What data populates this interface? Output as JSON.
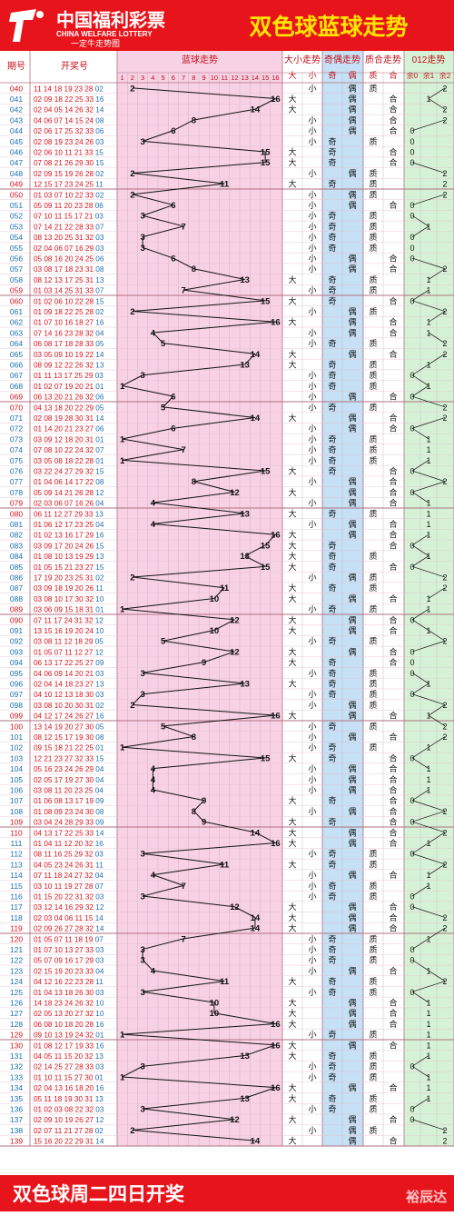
{
  "header": {
    "logo_cn": "中国福利彩票",
    "logo_en": "CHINA WELFARE LOTTERY",
    "logo_slogan": "一定牛走势图",
    "title": "双色球蓝球走势"
  },
  "columns": {
    "period": "期号",
    "numbers": "开奖号",
    "blue_trend": "蓝球走势",
    "size_trend": "大小走势",
    "parity_trend": "奇偶走势",
    "prime_trend": "质合走势",
    "mod3_trend": "012走势",
    "size_big": "大",
    "size_small": "小",
    "parity_odd": "奇",
    "parity_even": "偶",
    "prime_prime": "质",
    "prime_comp": "合",
    "mod_0": "余0",
    "mod_1": "余1",
    "mod_2": "余2"
  },
  "footer": {
    "text": "双色球周二四日开奖",
    "watermark": "裕辰达"
  },
  "colors": {
    "red": "#e8141b",
    "yellow": "#ffe600",
    "pink": "#f7d2e4",
    "blue": "#c6e0f5",
    "green": "#d6f2d6",
    "period_red": "#d8131b",
    "period_blue": "#1a6fb4"
  },
  "chart_data": {
    "type": "table",
    "blue_ball_range": [
      1,
      16
    ],
    "columns": [
      "1",
      "2",
      "3",
      "4",
      "5",
      "6",
      "7",
      "8",
      "9",
      "10",
      "11",
      "12",
      "13",
      "14",
      "15",
      "16"
    ],
    "rows": [
      {
        "period": "040",
        "reds": "11 14 18 19 23 28",
        "blue": 2
      },
      {
        "period": "041",
        "reds": "02 09 18 22 25 33",
        "blue": 16
      },
      {
        "period": "042",
        "reds": "02 04 05 14 26 32",
        "blue": 14
      },
      {
        "period": "043",
        "reds": "04 06 07 14 15 24",
        "blue": 8
      },
      {
        "period": "044",
        "reds": "02 06 17 25 32 33",
        "blue": 6
      },
      {
        "period": "045",
        "reds": "02 08 19 23 24 26",
        "blue": 3
      },
      {
        "period": "046",
        "reds": "02 06 10 11 21 33",
        "blue": 15
      },
      {
        "period": "047",
        "reds": "07 08 21 26 29 30",
        "blue": 15
      },
      {
        "period": "048",
        "reds": "02 09 15 19 26 28",
        "blue": 2
      },
      {
        "period": "049",
        "reds": "12 15 17 23 24 25",
        "blue": 11
      },
      {
        "period": "050",
        "reds": "01 03 07 10 22 33",
        "blue": 2
      },
      {
        "period": "051",
        "reds": "05 09 11 20 23 28",
        "blue": 6
      },
      {
        "period": "052",
        "reds": "07 10 11 15 17 21",
        "blue": 3
      },
      {
        "period": "053",
        "reds": "07 14 21 22 28 33",
        "blue": 7
      },
      {
        "period": "054",
        "reds": "08 13 20 25 31 32",
        "blue": 3
      },
      {
        "period": "055",
        "reds": "02 04 06 07 16 29",
        "blue": 3
      },
      {
        "period": "056",
        "reds": "05 08 16 20 24 25",
        "blue": 6
      },
      {
        "period": "057",
        "reds": "03 08 17 18 23 31",
        "blue": 8
      },
      {
        "period": "058",
        "reds": "08 12 13 17 25 31",
        "blue": 13
      },
      {
        "period": "059",
        "reds": "01 03 14 25 31 33",
        "blue": 7
      },
      {
        "period": "060",
        "reds": "01 02 06 10 22 28",
        "blue": 15
      },
      {
        "period": "061",
        "reds": "01 09 18 22 25 28",
        "blue": 2
      },
      {
        "period": "062",
        "reds": "01 07 10 16 18 27",
        "blue": 16
      },
      {
        "period": "063",
        "reds": "07 14 16 23 28 32",
        "blue": 4
      },
      {
        "period": "064",
        "reds": "06 08 17 18 28 33",
        "blue": 5
      },
      {
        "period": "065",
        "reds": "03 05 09 10 19 22",
        "blue": 14
      },
      {
        "period": "066",
        "reds": "08 09 12 22 26 32",
        "blue": 13
      },
      {
        "period": "067",
        "reds": "01 11 13 17 25 29",
        "blue": 3
      },
      {
        "period": "068",
        "reds": "01 02 07 19 20 21",
        "blue": 1
      },
      {
        "period": "069",
        "reds": "06 13 20 21 26 32",
        "blue": 6
      },
      {
        "period": "070",
        "reds": "04 13 18 20 22 29",
        "blue": 5
      },
      {
        "period": "071",
        "reds": "02 08 19 28 30 31",
        "blue": 14
      },
      {
        "period": "072",
        "reds": "01 14 20 21 23 27",
        "blue": 6
      },
      {
        "period": "073",
        "reds": "03 09 12 18 20 31",
        "blue": 1
      },
      {
        "period": "074",
        "reds": "07 08 10 22 24 32",
        "blue": 7
      },
      {
        "period": "075",
        "reds": "03 05 08 18 22 28",
        "blue": 1
      },
      {
        "period": "076",
        "reds": "03 22 24 27 29 32",
        "blue": 15
      },
      {
        "period": "077",
        "reds": "01 04 06 14 17 22",
        "blue": 8
      },
      {
        "period": "078",
        "reds": "05 09 14 21 26 28",
        "blue": 12
      },
      {
        "period": "079",
        "reds": "02 03 06 07 16 26",
        "blue": 4
      },
      {
        "period": "080",
        "reds": "06 11 12 27 29 33",
        "blue": 13
      },
      {
        "period": "081",
        "reds": "01 06 12 17 23 25",
        "blue": 4
      },
      {
        "period": "082",
        "reds": "01 02 13 16 17 29",
        "blue": 16
      },
      {
        "period": "083",
        "reds": "03 09 17 20 24 26",
        "blue": 15
      },
      {
        "period": "084",
        "reds": "01 08 10 13 19 29",
        "blue": 13
      },
      {
        "period": "085",
        "reds": "01 05 15 21 23 27",
        "blue": 15
      },
      {
        "period": "086",
        "reds": "17 19 20 23 25 31",
        "blue": 2
      },
      {
        "period": "087",
        "reds": "03 09 18 19 20 26",
        "blue": 11
      },
      {
        "period": "088",
        "reds": "03 08 10 17 30 32",
        "blue": 10
      },
      {
        "period": "089",
        "reds": "03 06 09 15 18 31",
        "blue": 1
      },
      {
        "period": "090",
        "reds": "07 11 17 24 31 32",
        "blue": 12
      },
      {
        "period": "091",
        "reds": "13 15 16 19 20 24",
        "blue": 10
      },
      {
        "period": "092",
        "reds": "03 08 11 12 18 29",
        "blue": 5
      },
      {
        "period": "093",
        "reds": "01 05 07 11 12 27",
        "blue": 12
      },
      {
        "period": "094",
        "reds": "06 13 17 22 25 27",
        "blue": 9
      },
      {
        "period": "095",
        "reds": "04 06 09 14 20 21",
        "blue": 3
      },
      {
        "period": "096",
        "reds": "02 04 14 18 23 27",
        "blue": 13
      },
      {
        "period": "097",
        "reds": "04 10 12 13 18 30",
        "blue": 3
      },
      {
        "period": "098",
        "reds": "03 08 10 20 30 31",
        "blue": 2
      },
      {
        "period": "099",
        "reds": "04 12 17 24 26 27",
        "blue": 16
      },
      {
        "period": "100",
        "reds": "13 14 19 20 27 30",
        "blue": 5
      },
      {
        "period": "101",
        "reds": "08 12 15 17 19 30",
        "blue": 8
      },
      {
        "period": "102",
        "reds": "09 15 18 21 22 25",
        "blue": 1
      },
      {
        "period": "103",
        "reds": "12 21 23 27 32 33",
        "blue": 15
      },
      {
        "period": "104",
        "reds": "05 16 23 24 26 29",
        "blue": 4
      },
      {
        "period": "105",
        "reds": "02 05 17 19 27 30",
        "blue": 4
      },
      {
        "period": "106",
        "reds": "03 08 11 20 23 25",
        "blue": 4
      },
      {
        "period": "107",
        "reds": "01 06 08 13 17 19",
        "blue": 9
      },
      {
        "period": "108",
        "reds": "01 08 09 23 24 30",
        "blue": 8
      },
      {
        "period": "109",
        "reds": "03 04 24 28 29 33",
        "blue": 9
      },
      {
        "period": "110",
        "reds": "04 13 17 22 25 33",
        "blue": 14
      },
      {
        "period": "111",
        "reds": "01 04 11 12 20 32",
        "blue": 16
      },
      {
        "period": "112",
        "reds": "08 11 16 25 29 32",
        "blue": 3
      },
      {
        "period": "113",
        "reds": "04 05 23 24 26 31",
        "blue": 11
      },
      {
        "period": "114",
        "reds": "07 11 18 24 27 32",
        "blue": 4
      },
      {
        "period": "115",
        "reds": "03 10 11 19 27 28",
        "blue": 7
      },
      {
        "period": "116",
        "reds": "01 15 20 22 31 32",
        "blue": 3
      },
      {
        "period": "117",
        "reds": "03 12 14 16 29 32",
        "blue": 12
      },
      {
        "period": "118",
        "reds": "02 03 04 06 11 15",
        "blue": 14
      },
      {
        "period": "119",
        "reds": "02 09 26 27 28 32",
        "blue": 14
      },
      {
        "period": "120",
        "reds": "01 05 07 11 18 19",
        "blue": 7
      },
      {
        "period": "121",
        "reds": "01 07 10 13 27 33",
        "blue": 3
      },
      {
        "period": "122",
        "reds": "05 07 09 16 17 29",
        "blue": 3
      },
      {
        "period": "123",
        "reds": "02 15 19 20 23 33",
        "blue": 4
      },
      {
        "period": "124",
        "reds": "04 12 16 22 23 28",
        "blue": 11
      },
      {
        "period": "125",
        "reds": "01 04 13 18 26 30",
        "blue": 3
      },
      {
        "period": "126",
        "reds": "14 18 23 24 26 32",
        "blue": 10
      },
      {
        "period": "127",
        "reds": "02 05 13 20 27 32",
        "blue": 10
      },
      {
        "period": "128",
        "reds": "06 08 10 18 20 28",
        "blue": 16
      },
      {
        "period": "129",
        "reds": "09 10 13 19 24 32",
        "blue": 1
      },
      {
        "period": "130",
        "reds": "01 08 12 17 19 33",
        "blue": 16
      },
      {
        "period": "131",
        "reds": "04 05 11 15 20 32",
        "blue": 13
      },
      {
        "period": "132",
        "reds": "02 14 25 27 28 33",
        "blue": 3
      },
      {
        "period": "133",
        "reds": "01 10 11 15 27 30",
        "blue": 1
      },
      {
        "period": "134",
        "reds": "02 04 13 16 18 20",
        "blue": 16
      },
      {
        "period": "135",
        "reds": "05 11 18 19 30 31",
        "blue": 13
      },
      {
        "period": "136",
        "reds": "01 02 03 08 22 32",
        "blue": 3
      },
      {
        "period": "137",
        "reds": "02 09 10 19 26 27",
        "blue": 12
      },
      {
        "period": "138",
        "reds": "02 07 11 21 27 28",
        "blue": 2
      },
      {
        "period": "139",
        "reds": "15 16 20 22 29 31",
        "blue": 14
      }
    ]
  }
}
